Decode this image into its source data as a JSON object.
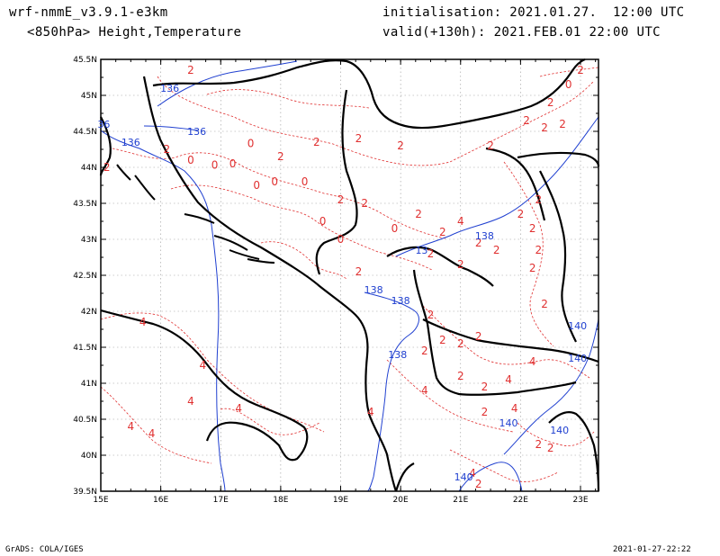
{
  "header": {
    "model": "wrf-nmmE_v3.9.1-e3km",
    "product": "<850hPa> Height,Temperature",
    "init": "initialisation: 2021.01.27.  12:00 UTC",
    "valid": "valid(+130h): 2021.FEB.01 22:00 UTC"
  },
  "footer": {
    "credit": "GrADS: COLA/IGES",
    "plot_date": "2021-01-27-22:22"
  },
  "colors": {
    "temperature": "#e03030",
    "height": "#2040d0",
    "coast": "#000000",
    "grid": "#999999"
  },
  "map_data": {
    "lon_range": [
      15,
      23.3
    ],
    "lat_range": [
      39.5,
      45.5
    ],
    "lon_ticks": [
      "15E",
      "16E",
      "17E",
      "18E",
      "19E",
      "20E",
      "21E",
      "22E",
      "23E"
    ],
    "lat_ticks": [
      "39.5N",
      "40N",
      "40.5N",
      "41N",
      "41.5N",
      "42N",
      "42.5N",
      "43N",
      "43.5N",
      "44N",
      "44.5N",
      "45N",
      "45.5N"
    ],
    "temperature_labels": [
      {
        "lon": 16.5,
        "lat": 45.3,
        "text": "2"
      },
      {
        "lon": 16.1,
        "lat": 44.2,
        "text": "2"
      },
      {
        "lon": 16.5,
        "lat": 44.05,
        "text": "0"
      },
      {
        "lon": 16.9,
        "lat": 43.98,
        "text": "0"
      },
      {
        "lon": 17.2,
        "lat": 44.0,
        "text": "0"
      },
      {
        "lon": 17.5,
        "lat": 44.28,
        "text": "0"
      },
      {
        "lon": 17.9,
        "lat": 43.75,
        "text": "0"
      },
      {
        "lon": 18.4,
        "lat": 43.75,
        "text": "0"
      },
      {
        "lon": 17.6,
        "lat": 43.7,
        "text": "0"
      },
      {
        "lon": 18.7,
        "lat": 43.2,
        "text": "0"
      },
      {
        "lon": 19.0,
        "lat": 42.95,
        "text": "0"
      },
      {
        "lon": 19.9,
        "lat": 43.1,
        "text": "0"
      },
      {
        "lon": 18.0,
        "lat": 44.1,
        "text": "2"
      },
      {
        "lon": 18.6,
        "lat": 44.3,
        "text": "2"
      },
      {
        "lon": 19.3,
        "lat": 44.35,
        "text": "2"
      },
      {
        "lon": 20.0,
        "lat": 44.25,
        "text": "2"
      },
      {
        "lon": 19.0,
        "lat": 43.5,
        "text": "2"
      },
      {
        "lon": 19.4,
        "lat": 43.45,
        "text": "2"
      },
      {
        "lon": 20.3,
        "lat": 43.3,
        "text": "2"
      },
      {
        "lon": 20.7,
        "lat": 43.05,
        "text": "2"
      },
      {
        "lon": 21.0,
        "lat": 43.2,
        "text": "4"
      },
      {
        "lon": 21.3,
        "lat": 42.9,
        "text": "2"
      },
      {
        "lon": 21.5,
        "lat": 44.25,
        "text": "2"
      },
      {
        "lon": 22.1,
        "lat": 44.6,
        "text": "2"
      },
      {
        "lon": 22.4,
        "lat": 44.5,
        "text": "2"
      },
      {
        "lon": 22.7,
        "lat": 44.55,
        "text": "2"
      },
      {
        "lon": 22.0,
        "lat": 43.3,
        "text": "2"
      },
      {
        "lon": 22.3,
        "lat": 43.5,
        "text": "2"
      },
      {
        "lon": 22.2,
        "lat": 43.1,
        "text": "2"
      },
      {
        "lon": 22.3,
        "lat": 42.8,
        "text": "2"
      },
      {
        "lon": 22.2,
        "lat": 42.55,
        "text": "2"
      },
      {
        "lon": 22.4,
        "lat": 42.05,
        "text": "2"
      },
      {
        "lon": 21.6,
        "lat": 42.8,
        "text": "2"
      },
      {
        "lon": 21.0,
        "lat": 42.6,
        "text": "2"
      },
      {
        "lon": 20.5,
        "lat": 42.75,
        "text": "2"
      },
      {
        "lon": 19.3,
        "lat": 42.5,
        "text": "2"
      },
      {
        "lon": 20.5,
        "lat": 41.9,
        "text": "2"
      },
      {
        "lon": 20.7,
        "lat": 41.55,
        "text": "2"
      },
      {
        "lon": 21.0,
        "lat": 41.5,
        "text": "2"
      },
      {
        "lon": 21.3,
        "lat": 41.6,
        "text": "2"
      },
      {
        "lon": 20.4,
        "lat": 41.4,
        "text": "2"
      },
      {
        "lon": 21.0,
        "lat": 41.05,
        "text": "2"
      },
      {
        "lon": 20.4,
        "lat": 40.85,
        "text": "4"
      },
      {
        "lon": 21.4,
        "lat": 40.9,
        "text": "2"
      },
      {
        "lon": 21.8,
        "lat": 41.0,
        "text": "4"
      },
      {
        "lon": 22.2,
        "lat": 41.25,
        "text": "4"
      },
      {
        "lon": 21.4,
        "lat": 40.55,
        "text": "2"
      },
      {
        "lon": 21.9,
        "lat": 40.6,
        "text": "4"
      },
      {
        "lon": 22.3,
        "lat": 40.1,
        "text": "2"
      },
      {
        "lon": 22.5,
        "lat": 40.05,
        "text": "2"
      },
      {
        "lon": 19.5,
        "lat": 40.55,
        "text": "4"
      },
      {
        "lon": 16.7,
        "lat": 41.2,
        "text": "4"
      },
      {
        "lon": 16.5,
        "lat": 40.7,
        "text": "4"
      },
      {
        "lon": 17.3,
        "lat": 40.6,
        "text": "4"
      },
      {
        "lon": 15.7,
        "lat": 41.8,
        "text": "4"
      },
      {
        "lon": 15.5,
        "lat": 40.35,
        "text": "4"
      },
      {
        "lon": 15.85,
        "lat": 40.25,
        "text": "4"
      },
      {
        "lon": 21.2,
        "lat": 39.7,
        "text": "4"
      },
      {
        "lon": 21.3,
        "lat": 39.55,
        "text": "2"
      },
      {
        "lon": 23.0,
        "lat": 45.3,
        "text": "2"
      },
      {
        "lon": 22.8,
        "lat": 45.1,
        "text": "0"
      },
      {
        "lon": 22.5,
        "lat": 44.85,
        "text": "2"
      },
      {
        "lon": 15.1,
        "lat": 43.95,
        "text": "2"
      }
    ],
    "height_labels": [
      {
        "lon": 16.15,
        "lat": 45.05,
        "text": "136"
      },
      {
        "lon": 16.6,
        "lat": 44.45,
        "text": "136"
      },
      {
        "lon": 15.5,
        "lat": 44.3,
        "text": "136"
      },
      {
        "lon": 15.05,
        "lat": 44.55,
        "text": "36"
      },
      {
        "lon": 21.4,
        "lat": 43.0,
        "text": "138"
      },
      {
        "lon": 20.35,
        "lat": 42.8,
        "text": "13"
      },
      {
        "lon": 19.55,
        "lat": 42.25,
        "text": "138"
      },
      {
        "lon": 20.0,
        "lat": 42.1,
        "text": "138"
      },
      {
        "lon": 19.95,
        "lat": 41.35,
        "text": "138"
      },
      {
        "lon": 21.8,
        "lat": 40.4,
        "text": "140"
      },
      {
        "lon": 22.65,
        "lat": 40.3,
        "text": "140"
      },
      {
        "lon": 22.95,
        "lat": 41.75,
        "text": "140"
      },
      {
        "lon": 22.95,
        "lat": 41.3,
        "text": "140"
      },
      {
        "lon": 21.05,
        "lat": 39.65,
        "text": "140"
      }
    ]
  }
}
